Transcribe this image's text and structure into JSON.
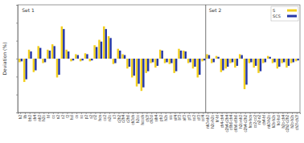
{
  "chart_data": {
    "type": "bar",
    "y_label": "Deviation (%)",
    "categories": [
      "h2",
      "lih",
      "bh3",
      "ch4",
      "nh3",
      "h2o",
      "hf",
      "co",
      "n2",
      "o2",
      "f2",
      "hcl",
      "cs",
      "so",
      "p2",
      "s2",
      "cl2",
      "hcn",
      "co2",
      "n2o",
      "o3",
      "c2h2",
      "c2h4",
      "c2h6",
      "ch3oh",
      "h2co",
      "hcooh",
      "ch3f",
      "ch3cl",
      "sih4",
      "ph3",
      "h2s",
      "sio",
      "sif4",
      "bf3",
      "alf3",
      "pf3",
      "so2",
      "clf3",
      "ccl4",
      "nh3-nh3",
      "h2o-h2o",
      "hf-hf",
      "ch4-ch4",
      "c2h4-c2h4",
      "c6h6-ch4",
      "c6h6-c6h6",
      "h2o-nh3",
      "c2h4-c2h2",
      "hcn-hcn",
      "co2-co2",
      "n2-n2",
      "ch4-hf",
      "nh3-h2o",
      "h2s-h2s",
      "hcl-hcl",
      "h2o-ch4",
      "c2h2-c2h2",
      "h2o-h2s",
      "ch3f-ch3f"
    ],
    "series": [
      {
        "name": "S",
        "color": "#f2cf1d",
        "values": [
          -0.4,
          -2.6,
          1.0,
          -1.5,
          1.4,
          -0.5,
          1.0,
          1.6,
          -2.1,
          3.6,
          1.0,
          -0.3,
          0.5,
          -0.3,
          0.6,
          -0.3,
          1.5,
          2.1,
          3.6,
          2.5,
          -0.6,
          1.1,
          0.5,
          -1.1,
          -2.1,
          -3.1,
          -3.6,
          -1.6,
          -0.5,
          -1.0,
          1.0,
          -0.5,
          -0.6,
          -1.6,
          1.1,
          0.9,
          -0.5,
          -1.1,
          -2.1,
          -0.3,
          0.5,
          -0.5,
          0.3,
          -1.5,
          -1.1,
          -0.5,
          -1.0,
          0.5,
          -3.4,
          -0.5,
          -1.0,
          -1.6,
          -0.5,
          0.3,
          -0.5,
          -1.1,
          -0.5,
          -1.0,
          -0.5,
          -0.3
        ]
      },
      {
        "name": "SCS",
        "color": "#2538a8",
        "values": [
          -0.3,
          -2.3,
          0.8,
          -1.3,
          1.2,
          -0.4,
          0.9,
          1.4,
          -1.8,
          3.3,
          0.8,
          -0.2,
          0.4,
          -0.2,
          0.5,
          -0.2,
          1.3,
          1.9,
          3.3,
          2.3,
          -0.5,
          0.9,
          0.4,
          -0.9,
          -1.9,
          -2.8,
          -3.2,
          -1.4,
          -0.4,
          -0.8,
          0.9,
          -0.4,
          -0.5,
          -1.4,
          0.9,
          0.8,
          -0.4,
          -0.9,
          -1.8,
          -0.2,
          0.4,
          -0.4,
          0.2,
          -1.3,
          -0.9,
          -0.4,
          -0.8,
          0.4,
          -2.9,
          -0.4,
          -0.8,
          -1.4,
          -0.4,
          0.2,
          -0.4,
          -0.9,
          -0.4,
          -0.8,
          -0.4,
          -0.2
        ]
      }
    ],
    "sets": [
      {
        "label": "Set 1",
        "start": 0,
        "end": 39
      },
      {
        "label": "Set 2",
        "start": 40,
        "end": 59
      }
    ],
    "ylim": [
      -6,
      6
    ],
    "yticks": [
      -4,
      -2,
      0,
      2,
      4
    ],
    "tick_labels": "x",
    "legend": "top-right"
  }
}
